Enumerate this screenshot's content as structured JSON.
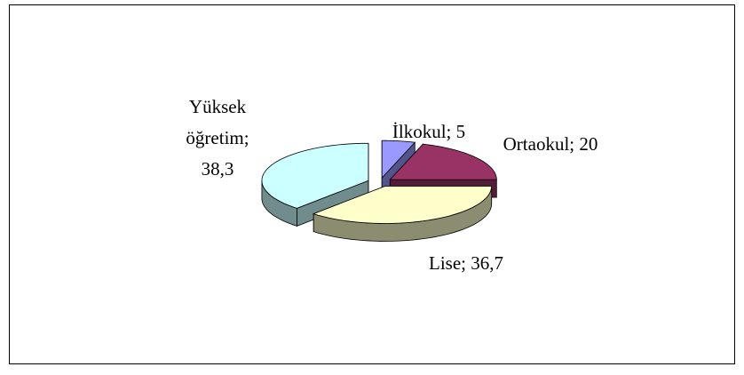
{
  "chart_data": {
    "type": "pie3d",
    "labels": [
      "İlkokul; 5",
      "Ortaokul; 20",
      "Lise; 36,7",
      "Yüksek öğretim; 38,3"
    ],
    "values": [
      5,
      20,
      36.7,
      38.3
    ],
    "colors": [
      "#9999ff",
      "#993366",
      "#ffffcc",
      "#ccffff"
    ]
  }
}
